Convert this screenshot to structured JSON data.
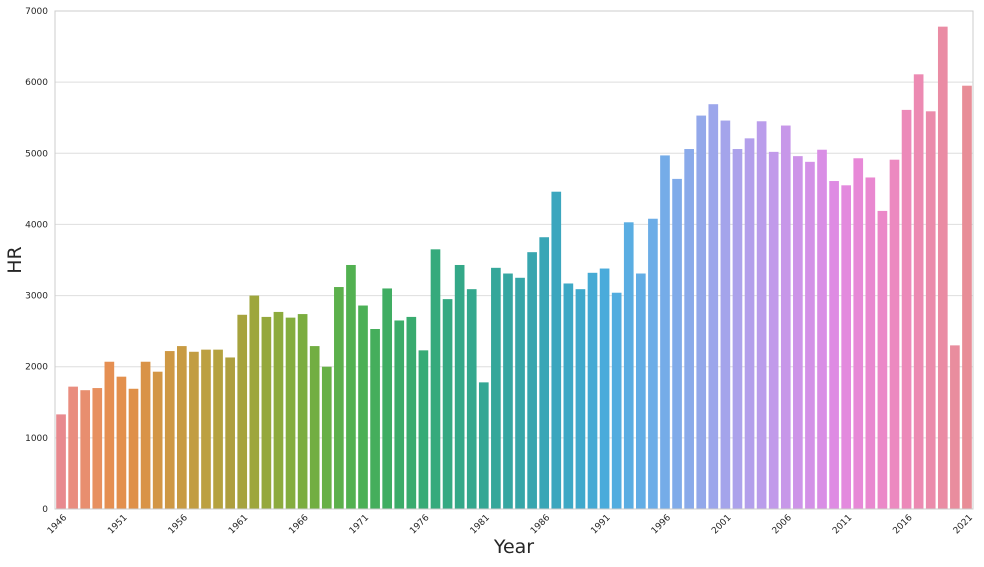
{
  "chart_data": {
    "type": "bar",
    "xlabel": "Year",
    "ylabel": "HR",
    "ylim": [
      0,
      7000
    ],
    "yticks": [
      0,
      1000,
      2000,
      3000,
      4000,
      5000,
      6000,
      7000
    ],
    "xtick_labels": [
      "1946",
      "1951",
      "1956",
      "1961",
      "1966",
      "1971",
      "1976",
      "1981",
      "1986",
      "1991",
      "1996",
      "2001",
      "2006",
      "2011",
      "2016",
      "2021"
    ],
    "grid": true,
    "categories": [
      "1946",
      "1947",
      "1948",
      "1949",
      "1950",
      "1951",
      "1952",
      "1953",
      "1954",
      "1955",
      "1956",
      "1957",
      "1958",
      "1959",
      "1960",
      "1961",
      "1962",
      "1963",
      "1964",
      "1965",
      "1966",
      "1967",
      "1968",
      "1969",
      "1970",
      "1971",
      "1972",
      "1973",
      "1974",
      "1975",
      "1976",
      "1977",
      "1978",
      "1979",
      "1980",
      "1981",
      "1982",
      "1983",
      "1984",
      "1985",
      "1986",
      "1987",
      "1988",
      "1989",
      "1990",
      "1991",
      "1992",
      "1993",
      "1994",
      "1995",
      "1996",
      "1997",
      "1998",
      "1999",
      "2000",
      "2001",
      "2002",
      "2003",
      "2004",
      "2005",
      "2006",
      "2007",
      "2008",
      "2009",
      "2010",
      "2011",
      "2012",
      "2013",
      "2014",
      "2015",
      "2016",
      "2017",
      "2018",
      "2019",
      "2020",
      "2021"
    ],
    "values": [
      1330,
      1720,
      1670,
      1700,
      2070,
      1860,
      1690,
      2070,
      1930,
      2220,
      2290,
      2210,
      2240,
      2240,
      2130,
      2730,
      3000,
      2700,
      2770,
      2690,
      2740,
      2290,
      2000,
      3120,
      3430,
      2860,
      2530,
      3100,
      2650,
      2700,
      2230,
      3650,
      2950,
      3430,
      3090,
      1780,
      3390,
      3310,
      3250,
      3610,
      3820,
      4460,
      3170,
      3090,
      3320,
      3380,
      3040,
      4030,
      3310,
      4080,
      4970,
      4640,
      5060,
      5530,
      5690,
      5460,
      5060,
      5210,
      5450,
      5020,
      5390,
      4960,
      4880,
      5050,
      4610,
      4550,
      4930,
      4660,
      4190,
      4910,
      5610,
      6110,
      5590,
      6780,
      2300,
      5950
    ],
    "colors": [
      "#e8898e",
      "#e98d7f",
      "#e88e6f",
      "#e7905f",
      "#e58f52",
      "#e3904d",
      "#df9049",
      "#d99347",
      "#d39645",
      "#ce9844",
      "#c89b43",
      "#c29d42",
      "#bca041",
      "#b5a23f",
      "#ae9f3e",
      "#a6a33d",
      "#9ea63d",
      "#95a83c",
      "#8dab3d",
      "#84ad3e",
      "#7bad3f",
      "#72ae42",
      "#67b046",
      "#5cb04c",
      "#52b151",
      "#4bb056",
      "#45ae5c",
      "#40ad62",
      "#3cac69",
      "#39ab6f",
      "#37ab76",
      "#36aa7c",
      "#35a982",
      "#34a888",
      "#34a88e",
      "#34a794",
      "#35a79a",
      "#36a6a1",
      "#37a6a8",
      "#38a6af",
      "#39a6b6",
      "#3ba6be",
      "#3da8c5",
      "#40a9cc",
      "#45aad4",
      "#4aabdb",
      "#52acdf",
      "#5aade2",
      "#62ade5",
      "#6cade7",
      "#75ace8",
      "#80abe9",
      "#8aaaea",
      "#93a8ea",
      "#9ca6eb",
      "#a4a4eb",
      "#aca2eb",
      "#b39feb",
      "#ba9deb",
      "#c19aea",
      "#c797e9",
      "#cd94e8",
      "#d391e7",
      "#d98ee5",
      "#de8be3",
      "#e38ade",
      "#e789d7",
      "#e988d0",
      "#eb88c8",
      "#ec89c0",
      "#ec89b9",
      "#ec8ab2",
      "#eb8bab",
      "#ea8ca4",
      "#e98d9e",
      "#e88d97"
    ]
  }
}
